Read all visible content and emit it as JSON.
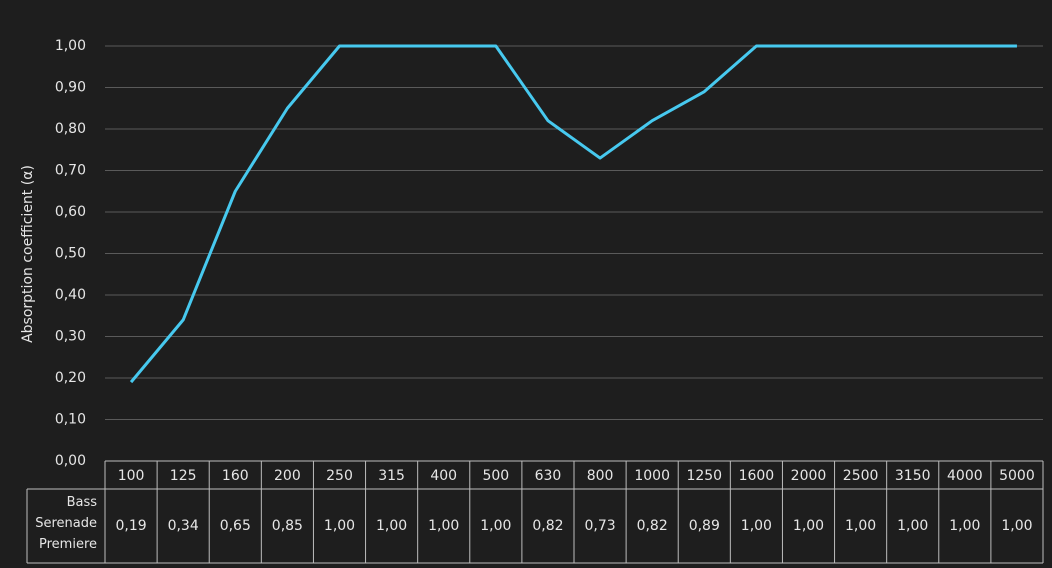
{
  "chart_data": {
    "type": "line",
    "y_label": "Absorption coefficient (α)",
    "categories": [
      "100",
      "125",
      "160",
      "200",
      "250",
      "315",
      "400",
      "500",
      "630",
      "800",
      "1000",
      "1250",
      "1600",
      "2000",
      "2500",
      "3150",
      "4000",
      "5000"
    ],
    "series": [
      {
        "name": "Bass Serenade Premiere",
        "color": "#47c9ef",
        "values": [
          0.19,
          0.34,
          0.65,
          0.85,
          1.0,
          1.0,
          1.0,
          1.0,
          0.82,
          0.73,
          0.82,
          0.89,
          1.0,
          1.0,
          1.0,
          1.0,
          1.0,
          1.0
        ],
        "value_labels": [
          "0,19",
          "0,34",
          "0,65",
          "0,85",
          "1,00",
          "1,00",
          "1,00",
          "1,00",
          "0,82",
          "0,73",
          "0,82",
          "0,89",
          "1,00",
          "1,00",
          "1,00",
          "1,00",
          "1,00",
          "1,00"
        ]
      }
    ],
    "ylim": [
      0,
      1
    ],
    "yticks": [
      {
        "value": 0,
        "label": "0,00"
      },
      {
        "value": 0.1,
        "label": "0,10"
      },
      {
        "value": 0.2,
        "label": "0,20"
      },
      {
        "value": 0.3,
        "label": "0,30"
      },
      {
        "value": 0.4,
        "label": "0,40"
      },
      {
        "value": 0.5,
        "label": "0,50"
      },
      {
        "value": 0.6,
        "label": "0,60"
      },
      {
        "value": 0.7,
        "label": "0,70"
      },
      {
        "value": 0.8,
        "label": "0,80"
      },
      {
        "value": 0.9,
        "label": "0,90"
      },
      {
        "value": 1,
        "label": "1,00"
      }
    ],
    "grid": true
  }
}
